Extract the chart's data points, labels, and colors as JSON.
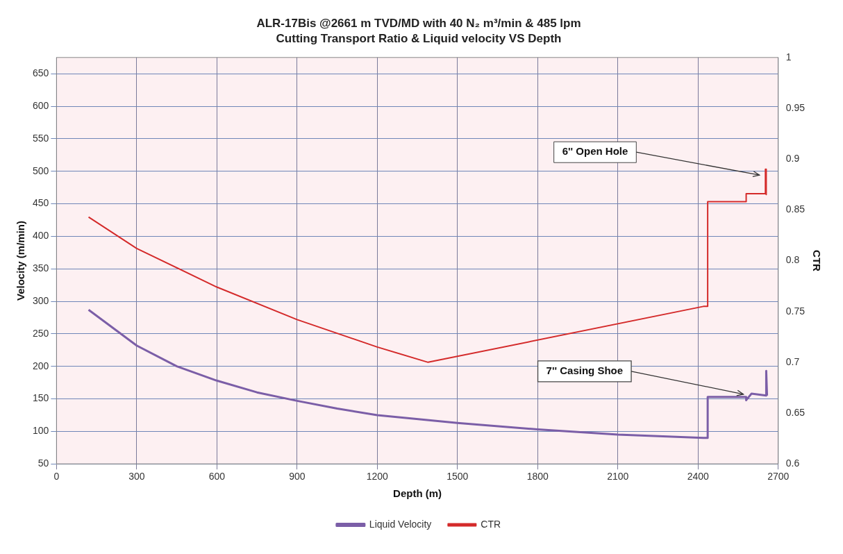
{
  "chart_data": {
    "type": "line",
    "title": "ALR-17Bis @2661 m TVD/MD with 40 N₂ m³/min & 485 lpm",
    "subtitle": "Cutting Transport Ratio & Liquid velocity VS Depth",
    "xlabel": "Depth (m)",
    "ylabel": "Velocity (m/min)",
    "y2label": "CTR",
    "series": [
      {
        "name": "Liquid Velocity",
        "color": "#7b5ea7",
        "x": [
          120,
          300,
          450,
          600,
          750,
          900,
          1050,
          1200,
          1500,
          1800,
          2100,
          2420,
          2436,
          2436,
          2580,
          2580,
          2600,
          2655,
          2655,
          2658
        ],
        "values": [
          287,
          232,
          200,
          178,
          160,
          147,
          135,
          125,
          113,
          103,
          95,
          90,
          90,
          153,
          153,
          148,
          158,
          155,
          193,
          155
        ]
      },
      {
        "name": "CTR",
        "color": "#d42a2a",
        "axis": "y2",
        "x": [
          120,
          300,
          600,
          900,
          1200,
          1390,
          2420,
          2436,
          2436,
          2580,
          2580,
          2652,
          2652,
          2655,
          2655
        ],
        "values": [
          0.843,
          0.812,
          0.774,
          0.742,
          0.715,
          0.7,
          0.755,
          0.755,
          0.858,
          0.858,
          0.866,
          0.866,
          0.89,
          0.89,
          0.865
        ]
      }
    ],
    "xlim": [
      0,
      2700
    ],
    "xticks": [
      0,
      300,
      600,
      900,
      1200,
      1500,
      1800,
      2100,
      2400,
      2700
    ],
    "ylim": [
      50,
      675
    ],
    "yticks": [
      50,
      100,
      150,
      200,
      250,
      300,
      350,
      400,
      450,
      500,
      550,
      600,
      650
    ],
    "y2lim": [
      0.6,
      1
    ],
    "y2ticks": [
      0.6,
      0.65,
      0.7,
      0.75,
      0.8,
      0.85,
      0.9,
      0.95,
      1
    ],
    "annotations": [
      {
        "text": "6'' Open Hole",
        "x": 2640,
        "y": 492
      },
      {
        "text": "7'' Casing Shoe",
        "x": 2580,
        "y": 155
      }
    ],
    "grid": true,
    "legend": "bottom",
    "marker": "none",
    "line_style": "solid"
  }
}
